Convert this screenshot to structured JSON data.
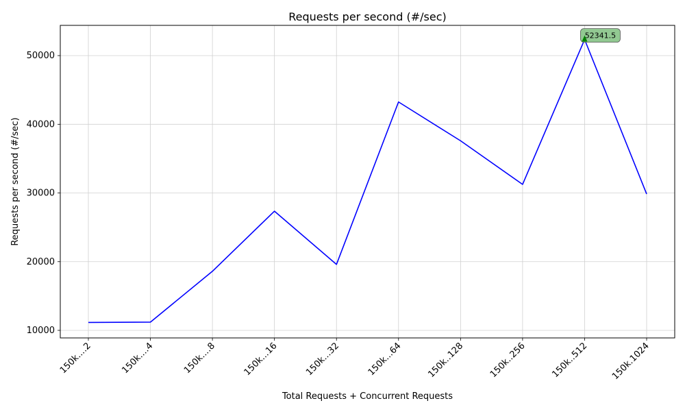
{
  "chart_data": {
    "type": "line",
    "title": "Requests per second (#/sec)",
    "xlabel": "Total Requests + Concurrent Requests",
    "ylabel": "Requests per second (#/sec)",
    "categories": [
      "150k....2",
      "150k....4",
      "150k....8",
      "150k...16",
      "150k...32",
      "150k...64",
      "150k..128",
      "150k..256",
      "150k..512",
      "150k.1024"
    ],
    "series": [
      {
        "values": [
          11150,
          11200,
          18600,
          27350,
          19600,
          43250,
          37600,
          31250,
          52341.5,
          29850
        ],
        "color": "#0000ff"
      }
    ],
    "ylim": [
      8900,
      54400
    ],
    "yticks": [
      10000,
      20000,
      30000,
      40000,
      50000
    ],
    "grid": true,
    "annotation": {
      "label": "52341.5",
      "category_index": 8,
      "value": 52341.5,
      "box_color": "#7fbf7f",
      "marker_color": "#008000"
    }
  }
}
